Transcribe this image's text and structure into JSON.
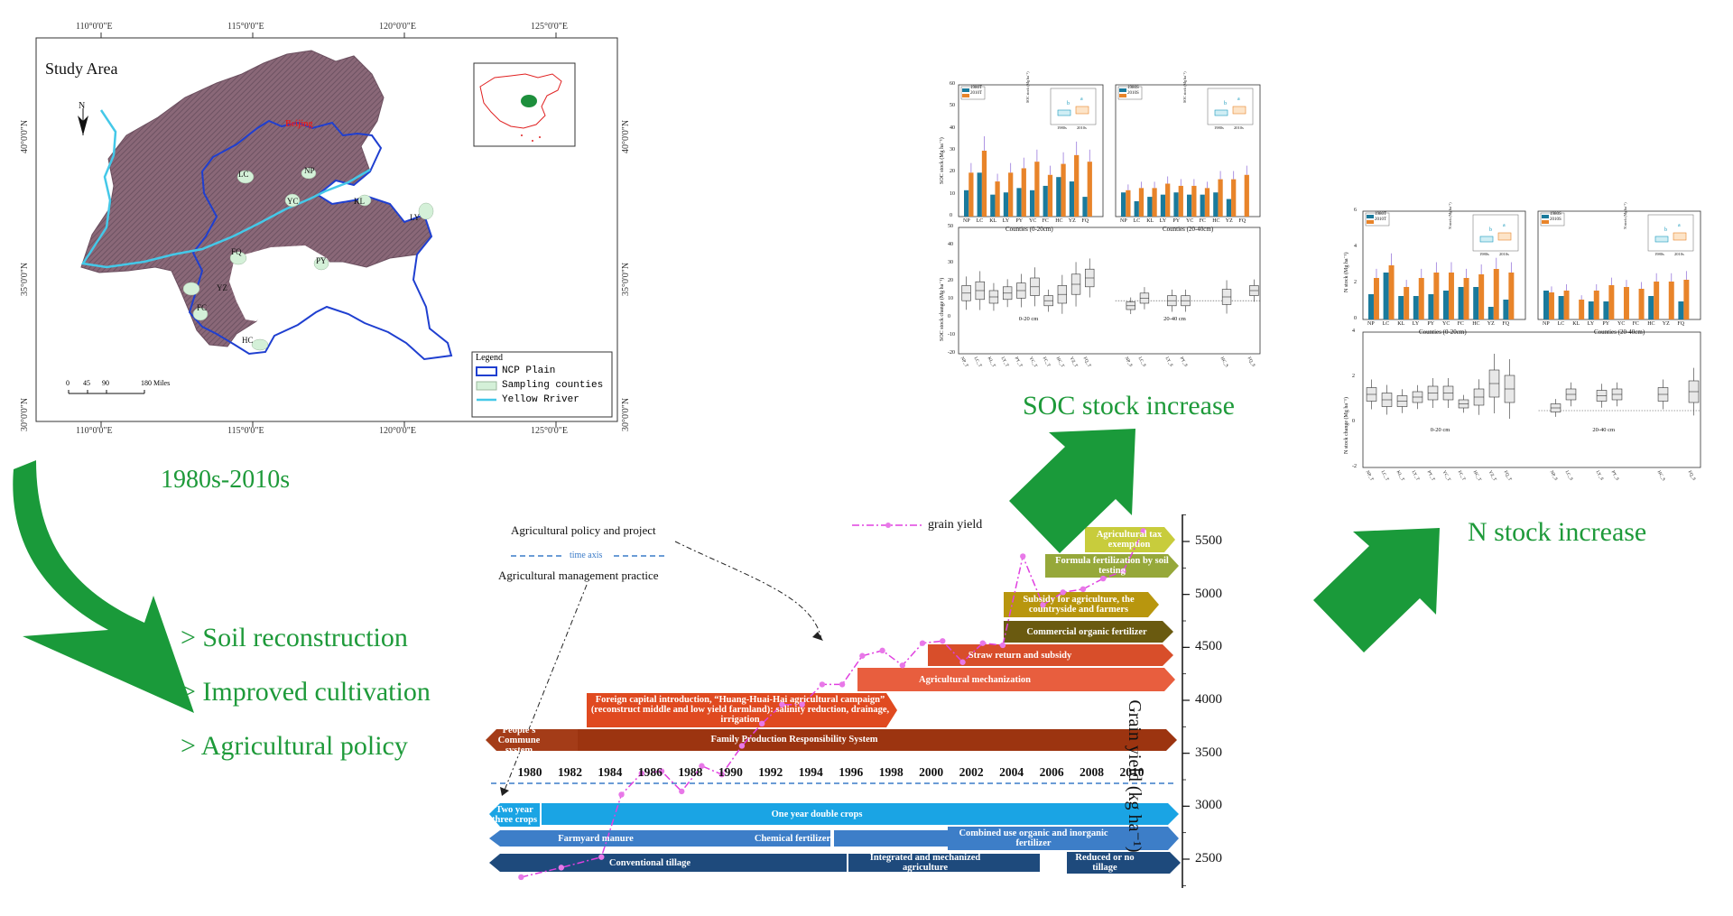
{
  "map": {
    "title": "Study Area",
    "north": "N",
    "lon_ticks": [
      "110°0'0\"E",
      "115°0'0\"E",
      "120°0'0\"E",
      "125°0'0\"E"
    ],
    "lat_ticks": [
      "40°0'0\"N",
      "35°0'0\"N",
      "30°0'0\"N"
    ],
    "city": "Beijing",
    "counties": [
      "NP",
      "LC",
      "YC",
      "KL",
      "LY",
      "FQ",
      "PY",
      "FC",
      "YZ",
      "HC"
    ],
    "scale_labels": [
      "0",
      "45",
      "90",
      "180 Miles"
    ],
    "legend": {
      "title": "Legend",
      "items": [
        "NCP Plain",
        "Sampling counties",
        "Yellow Rriver"
      ]
    },
    "colors": {
      "terrain": "#8a6878",
      "ncp": "#1f3fd0",
      "river": "#44c8e8",
      "county": "#d4f0d8"
    }
  },
  "left_labels": {
    "period": "1980s-2010s",
    "bullets": [
      "> Soil reconstruction",
      "> Improved cultivation",
      "> Agricultural policy"
    ]
  },
  "timeline": {
    "legend": {
      "policy": "Agricultural policy and project",
      "axis": "time axis",
      "practice": "Agricultural management practice",
      "grain": "grain yield"
    },
    "years": [
      "1980",
      "1982",
      "1984",
      "1986",
      "1988",
      "1990",
      "1992",
      "1994",
      "1996",
      "1998",
      "2000",
      "2002",
      "2004",
      "2006",
      "2008",
      "2010"
    ],
    "y_axis": {
      "label": "Grain yield (kg ha⁻¹)",
      "ticks": [
        "5500",
        "5000",
        "4500",
        "4000",
        "3500",
        "3000",
        "2500"
      ]
    },
    "policies": [
      "Agricultural tax exemption",
      "Formula fertilization by soil testing",
      "Subsidy for agriculture, the countryside and farmers",
      "Commercial organic fertilizer",
      "Straw return and subsidy",
      "Agricultural mechanization",
      "Foreign capital introduction, “Huang-Huai-Hai agricultural campaign” (reconstruct middle and low yield farmland): salinity reduction, drainage, irrigation",
      "People's Commune system",
      "Family Production Responsibility System"
    ],
    "practices": [
      "Two year three crops",
      "One year double crops",
      "Farmyard manure",
      "Chemical fertilizer",
      "Combined use organic and inorganic fertilizer",
      "Conventional tillage",
      "Integrated and mechanized agriculture",
      "Reduced or no tillage"
    ],
    "grain_yield": {
      "years": [
        1979,
        1981,
        1983,
        1984,
        1985,
        1986,
        1987,
        1988,
        1989,
        1990,
        1991,
        1992,
        1993,
        1994,
        1995,
        1996,
        1997,
        1998,
        1999,
        2000,
        2001,
        2002,
        2003,
        2004,
        2005,
        2006,
        2007,
        2008,
        2009,
        2010
      ],
      "values": [
        2330,
        2420,
        2520,
        3110,
        3310,
        3330,
        3140,
        3380,
        3300,
        3570,
        3780,
        3960,
        3960,
        4150,
        4150,
        4420,
        4470,
        4330,
        4540,
        4560,
        4360,
        4540,
        4520,
        5360,
        4900,
        5020,
        5050,
        5150,
        5220,
        5600
      ]
    }
  },
  "results": {
    "soc": "SOC stock increase",
    "n": "N stock increase"
  },
  "soc_panel": {
    "legend_a": [
      "1980T",
      "2010T"
    ],
    "legend_b": [
      "1980S",
      "2010S"
    ],
    "ylabel": "SOC stock (Mg ha⁻¹)",
    "ylabel_change": "SOC stock change (Mg ha⁻¹)",
    "xlabel_a": "Counties (0-20cm)",
    "xlabel_b": "Counties  (20-40cm)",
    "box_label_a": "0-20 cm",
    "box_label_b": "20-40 cm",
    "inset_ylabel": "SOC stock (Mg ha⁻¹)",
    "inset_x": [
      "1980s",
      "2010s"
    ],
    "inset_letters": [
      "b",
      "a"
    ],
    "county_labels": [
      "NP",
      "LC",
      "KL",
      "LY",
      "PY",
      "YC",
      "FC",
      "HC",
      "YZ",
      "FQ"
    ],
    "y_ticks_top": [
      "60",
      "50",
      "40",
      "30",
      "20",
      "10",
      "0"
    ],
    "y_ticks_bottom": [
      "50",
      "40",
      "30",
      "20",
      "10",
      "0",
      "-10",
      "-20"
    ],
    "bars_0_20": {
      "s1980": [
        12,
        20,
        10,
        11,
        13,
        12,
        14,
        18,
        16,
        9
      ],
      "s2010": [
        20,
        30,
        16,
        20,
        22,
        25,
        19,
        24,
        28,
        25
      ]
    },
    "bars_20_40": {
      "s1980": [
        11,
        7,
        9,
        10,
        11,
        10,
        10,
        11,
        8,
        0
      ],
      "s2010": [
        12,
        13,
        13,
        15,
        14,
        14,
        13,
        17,
        17,
        19
      ]
    }
  },
  "n_panel": {
    "legend_a": [
      "1980T",
      "2010T"
    ],
    "legend_b": [
      "1980S",
      "2010S"
    ],
    "ylabel": "N stock (Mg ha⁻¹)",
    "ylabel_change": "N stock change (Mg ha⁻¹)",
    "xlabel_a": "Counties (0-20cm)",
    "xlabel_b": "Counties  (20-40cm)",
    "box_label_a": "0-20 cm",
    "box_label_b": "20-40 cm",
    "inset_ylabel": "N stock (Mg ha⁻¹)",
    "inset_x": [
      "1980s",
      "2010s"
    ],
    "inset_letters": [
      "b",
      "a"
    ],
    "county_labels": [
      "NP",
      "LC",
      "KL",
      "LY",
      "PY",
      "YC",
      "FC",
      "HC",
      "YZ",
      "FQ"
    ],
    "y_ticks_top": [
      "6",
      "4",
      "2",
      "0"
    ],
    "y_ticks_bottom": [
      "4",
      "2",
      "0",
      "-2"
    ],
    "bars_0_20": {
      "s1980": [
        1.4,
        2.6,
        1.3,
        1.3,
        1.4,
        1.6,
        1.8,
        1.8,
        0.7,
        1.1
      ],
      "s2010": [
        2.3,
        3.0,
        1.8,
        2.3,
        2.6,
        2.6,
        2.3,
        2.5,
        2.8,
        2.6
      ]
    },
    "bars_20_40": {
      "s1980": [
        1.6,
        1.3,
        0.0,
        1.0,
        1.0,
        0.0,
        0.0,
        1.3,
        0.0,
        1.0
      ],
      "s2010": [
        1.5,
        1.6,
        1.1,
        1.6,
        1.9,
        1.8,
        1.7,
        2.1,
        2.1,
        2.2
      ]
    }
  }
}
